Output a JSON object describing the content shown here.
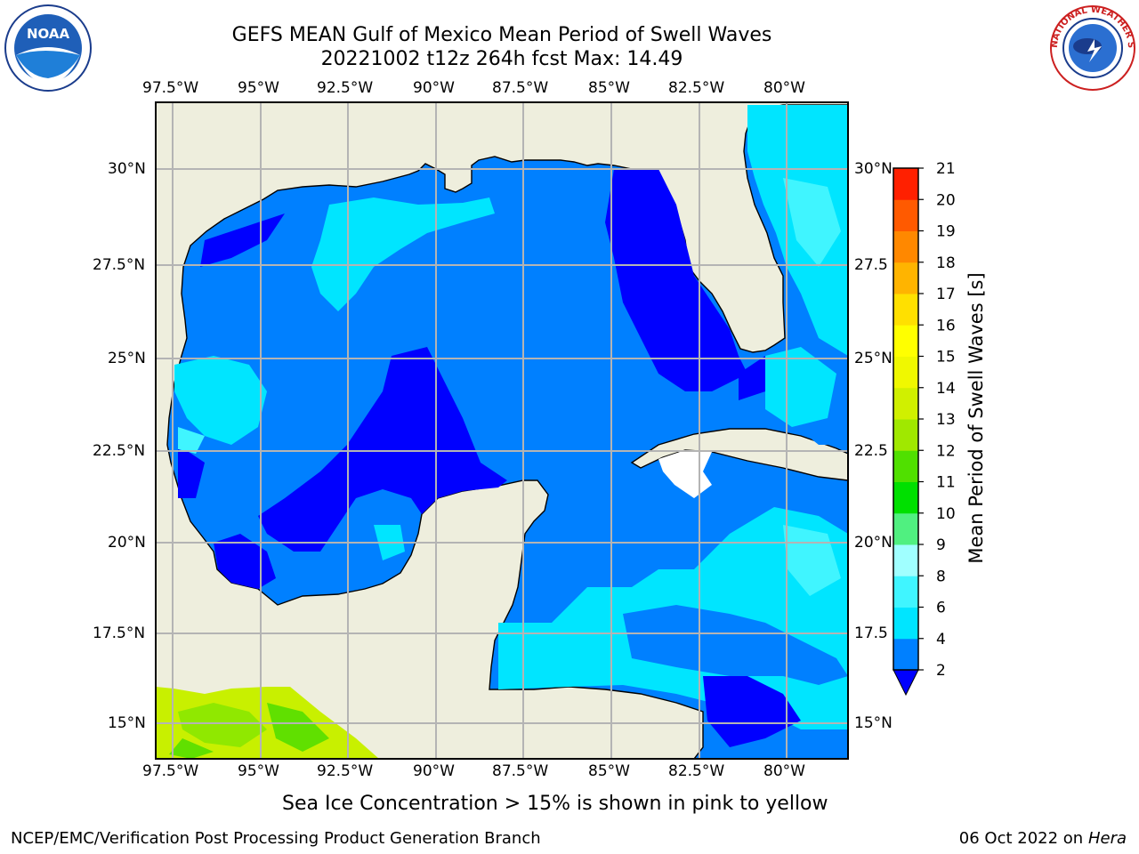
{
  "header": {
    "title_line1": "GEFS MEAN Gulf of Mexico Mean Period of Swell Waves",
    "title_line2": "20221002 t12z 264h fcst   Max: 14.49"
  },
  "map": {
    "lon_labels": [
      "97.5°W",
      "95°W",
      "92.5°W",
      "90°W",
      "87.5°W",
      "85°W",
      "82.5°W",
      "80°W"
    ],
    "lat_labels_left": [
      "30°N",
      "27.5°N",
      "25°N",
      "22.5°N",
      "20°N",
      "17.5°N",
      "15°N"
    ],
    "lat_labels_right": [
      "30°N",
      "27.5",
      "25°N",
      "22.5",
      "20°N",
      "17.5",
      "15°N"
    ],
    "land_color": "#eeeedd",
    "gridline_color": "#b4b4b4"
  },
  "colorbar": {
    "label": "Mean Period of Swell Waves [s]",
    "ticks": [
      "2",
      "4",
      "6",
      "8",
      "9",
      "10",
      "11",
      "12",
      "13",
      "14",
      "15",
      "16",
      "17",
      "18",
      "19",
      "20",
      "21"
    ],
    "colors": [
      "#0080ff",
      "#00e5ff",
      "#40f5ff",
      "#a0ffff",
      "#50f080",
      "#00e000",
      "#50e000",
      "#a0e800",
      "#d0f000",
      "#f0f800",
      "#ffff00",
      "#ffe000",
      "#ffb400",
      "#ff8800",
      "#ff5a00",
      "#ff2000"
    ],
    "under_color": "#0000ff"
  },
  "footer": {
    "subtitle": "Sea Ice Concentration > 15% is shown in pink to yellow",
    "credit": "NCEP/EMC/Verification Post Processing Product Generation Branch",
    "date_text": "06 Oct 2022 on ",
    "host": "Hera"
  },
  "logos": {
    "noaa_text": "NOAA",
    "nws_ring_text": "NATIONAL WEATHER SERVICE"
  }
}
